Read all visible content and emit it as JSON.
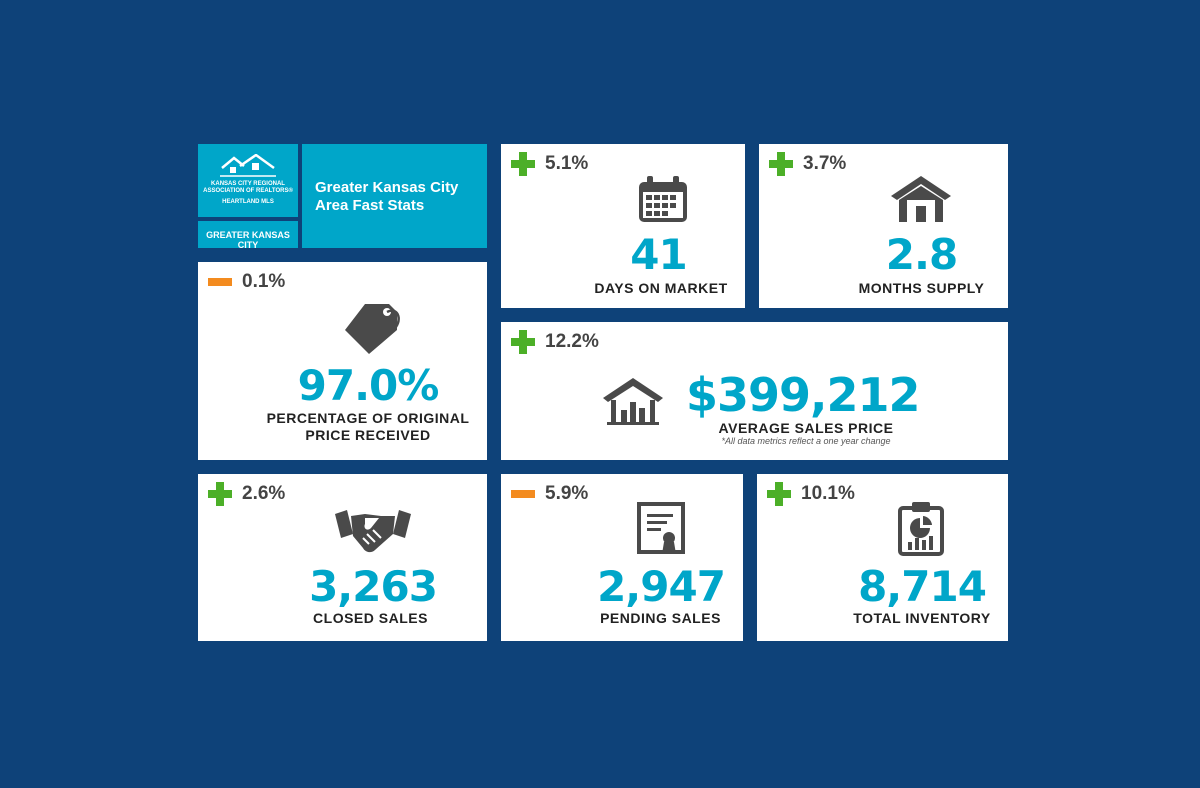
{
  "branding": {
    "org_line1": "KANSAS CITY REGIONAL",
    "org_line2": "ASSOCIATION OF REALTORS®",
    "org_line3": "HEARTLAND MLS",
    "area": "GREATER KANSAS CITY",
    "title": "Greater Kansas City Area Fast Stats"
  },
  "stats": {
    "days_on_market": {
      "change": "5.1%",
      "direction": "up",
      "value": "41",
      "label": "DAYS ON MARKET"
    },
    "months_supply": {
      "change": "3.7%",
      "direction": "up",
      "value": "2.8",
      "label": "MONTHS SUPPLY"
    },
    "pct_original": {
      "change": "0.1%",
      "direction": "down",
      "value": "97.0%",
      "label_line1": "PERCENTAGE OF ORIGINAL",
      "label_line2": "PRICE RECEIVED"
    },
    "avg_price": {
      "change": "12.2%",
      "direction": "up",
      "value": "$399,212",
      "label": "AVERAGE SALES PRICE",
      "note": "*All data metrics reflect a one year change"
    },
    "closed_sales": {
      "change": "2.6%",
      "direction": "up",
      "value": "3,263",
      "label": "CLOSED SALES"
    },
    "pending_sales": {
      "change": "5.9%",
      "direction": "down",
      "value": "2,947",
      "label": "PENDING SALES"
    },
    "total_inventory": {
      "change": "10.1%",
      "direction": "up",
      "value": "8,714",
      "label": "TOTAL INVENTORY"
    }
  },
  "colors": {
    "background": "#0e4279",
    "accent": "#00a6c9",
    "up": "#4caf28",
    "down": "#f38b1f",
    "icon": "#4a4a4a"
  }
}
